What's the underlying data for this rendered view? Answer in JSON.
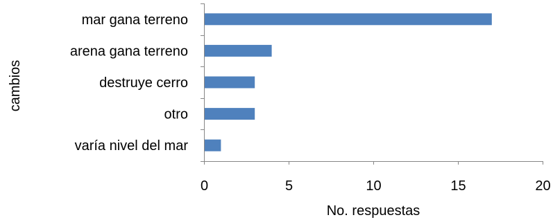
{
  "chart_data": {
    "type": "bar",
    "orientation": "horizontal",
    "categories": [
      "mar gana terreno",
      "arena gana terreno",
      "destruye cerro",
      "otro",
      "varía nivel del mar"
    ],
    "values": [
      17,
      4,
      3,
      3,
      1
    ],
    "xlabel": "No. respuestas",
    "ylabel": "cambios",
    "xlim": [
      0,
      20
    ],
    "xticks": [
      "0",
      "5",
      "10",
      "15",
      "20"
    ],
    "grid": false,
    "legend": "none",
    "colors": {
      "bar": "#4f81bd",
      "axis": "#868686"
    }
  }
}
